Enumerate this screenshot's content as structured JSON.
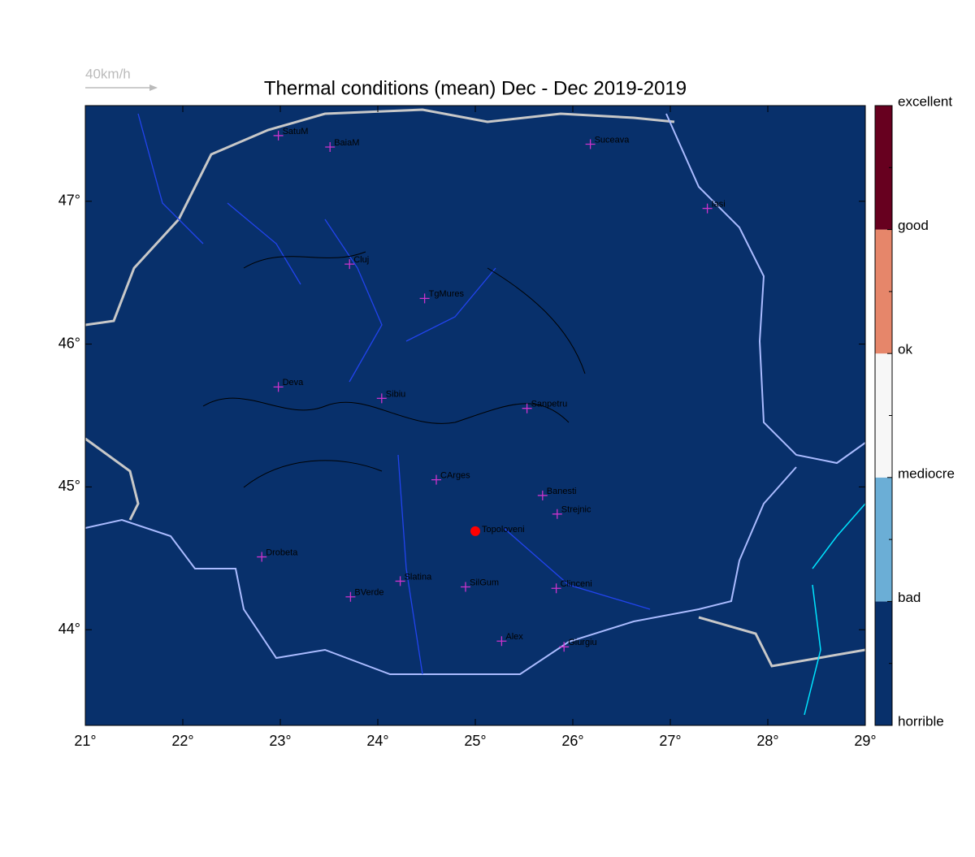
{
  "map": {
    "title": "Thermal conditions (mean) Dec - Dec  2019-2019",
    "wind_scale_label": "40km/h",
    "background": "#08306b",
    "xlim": [
      21,
      29
    ],
    "ylim": [
      43.33,
      47.67
    ],
    "xticks": [
      {
        "value": 21,
        "label": "21°"
      },
      {
        "value": 22,
        "label": "22°"
      },
      {
        "value": 23,
        "label": "23°"
      },
      {
        "value": 24,
        "label": "24°"
      },
      {
        "value": 25,
        "label": "25°"
      },
      {
        "value": 26,
        "label": "26°"
      },
      {
        "value": 27,
        "label": "27°"
      },
      {
        "value": 28,
        "label": "28°"
      },
      {
        "value": 29,
        "label": "29°"
      }
    ],
    "yticks": [
      {
        "value": 44,
        "label": "44°"
      },
      {
        "value": 45,
        "label": "45°"
      },
      {
        "value": 46,
        "label": "46°"
      },
      {
        "value": 47,
        "label": "47°"
      }
    ],
    "city_color": "#cc33cc",
    "cities": [
      {
        "name": "SatuM",
        "lon": 22.98,
        "lat": 47.46
      },
      {
        "name": "BaiaM",
        "lon": 23.51,
        "lat": 47.38
      },
      {
        "name": "Suceava",
        "lon": 26.18,
        "lat": 47.4
      },
      {
        "name": "Iasi",
        "lon": 27.38,
        "lat": 46.95
      },
      {
        "name": "Cluj",
        "lon": 23.71,
        "lat": 46.56
      },
      {
        "name": "TgMures",
        "lon": 24.48,
        "lat": 46.32
      },
      {
        "name": "Deva",
        "lon": 22.98,
        "lat": 45.7
      },
      {
        "name": "Sibiu",
        "lon": 24.04,
        "lat": 45.62
      },
      {
        "name": "Sanpetru",
        "lon": 25.53,
        "lat": 45.55
      },
      {
        "name": "CArges",
        "lon": 24.6,
        "lat": 45.05
      },
      {
        "name": "Banesti",
        "lon": 25.69,
        "lat": 44.94
      },
      {
        "name": "Strejnic",
        "lon": 25.84,
        "lat": 44.81
      },
      {
        "name": "Drobeta",
        "lon": 22.81,
        "lat": 44.51
      },
      {
        "name": "Slatina",
        "lon": 24.23,
        "lat": 44.34
      },
      {
        "name": "SilGum",
        "lon": 24.9,
        "lat": 44.3
      },
      {
        "name": "Clinceni",
        "lon": 25.83,
        "lat": 44.29
      },
      {
        "name": "BVerde",
        "lon": 23.72,
        "lat": 44.23
      },
      {
        "name": "Alex",
        "lon": 25.27,
        "lat": 43.92
      },
      {
        "name": "Giurgiu",
        "lon": 25.91,
        "lat": 43.88
      }
    ],
    "location": {
      "name": "Topoloveni",
      "lon": 25.0,
      "lat": 44.69,
      "color": "#ff0000"
    },
    "colorbar": {
      "labels": [
        "horrible",
        "bad",
        "mediocre",
        "ok",
        "good",
        "excellent"
      ],
      "colors": [
        "#08306b",
        "#6baed6",
        "#f7f7f7",
        "#e6866a",
        "#67001f"
      ]
    }
  }
}
